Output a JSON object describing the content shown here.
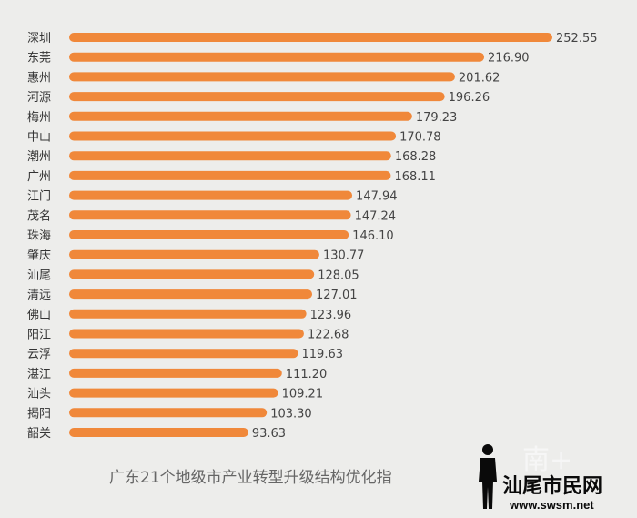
{
  "chart_data": {
    "type": "bar",
    "orientation": "horizontal",
    "categories": [
      "深圳",
      "东莞",
      "惠州",
      "河源",
      "梅州",
      "中山",
      "潮州",
      "广州",
      "江门",
      "茂名",
      "珠海",
      "肇庆",
      "汕尾",
      "清远",
      "佛山",
      "阳江",
      "云浮",
      "湛江",
      "汕头",
      "揭阳",
      "韶关"
    ],
    "values": [
      252.55,
      216.9,
      201.62,
      196.26,
      179.23,
      170.78,
      168.28,
      168.11,
      147.94,
      147.24,
      146.1,
      130.77,
      128.05,
      127.01,
      123.96,
      122.68,
      119.63,
      111.2,
      109.21,
      103.3,
      93.63
    ],
    "value_labels": [
      "252.55",
      "216.90",
      "201.62",
      "196.26",
      "179.23",
      "170.78",
      "168.28",
      "168.11",
      "147.94",
      "147.24",
      "146.10",
      "130.77",
      "128.05",
      "127.01",
      "123.96",
      "122.68",
      "119.63",
      "111.20",
      "109.21",
      "103.30",
      "93.63"
    ],
    "title": "广东21个地级市产业转型升级结构优化指",
    "xlabel": "",
    "ylabel": "",
    "bar_color": "#f0883a",
    "grid": false
  },
  "watermark": {
    "site_name": "汕尾市民网",
    "url": "www.swsm.net",
    "faint_text": "南+"
  }
}
